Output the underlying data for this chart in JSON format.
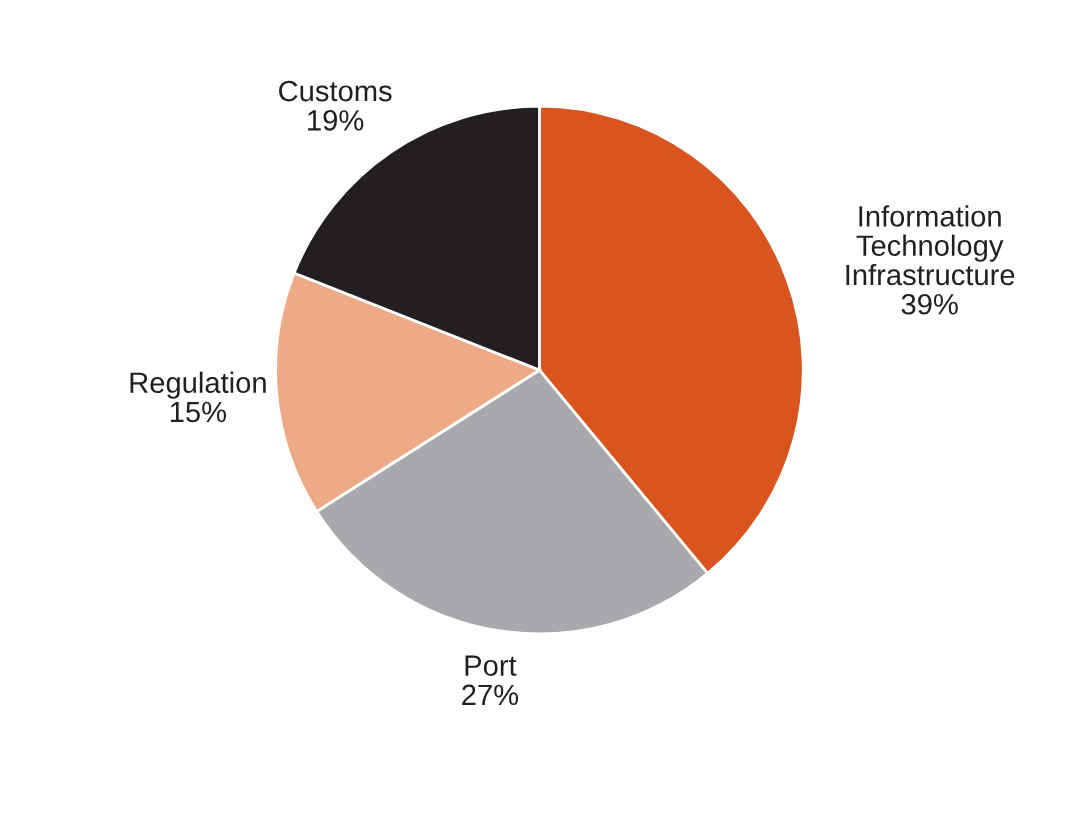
{
  "chart_data": {
    "type": "pie",
    "categories": [
      "Information\nTechnology\nInfrastructure",
      "Port",
      "Regulation",
      "Customs"
    ],
    "values": [
      39,
      27,
      15,
      19
    ],
    "value_labels": [
      "39%",
      "27%",
      "15%",
      "19%"
    ],
    "colors": [
      "#d9541e",
      "#a7a9ac",
      "#eeaa86",
      "#231f20"
    ]
  }
}
